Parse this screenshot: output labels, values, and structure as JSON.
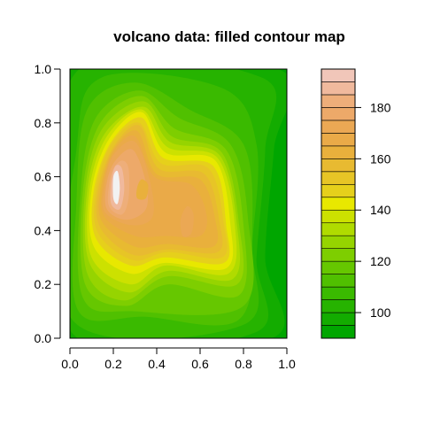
{
  "chart_data": {
    "type": "heatmap",
    "title": "volcano data: filled contour map",
    "xlabel": "",
    "ylabel": "",
    "xlim": [
      0,
      1
    ],
    "ylim": [
      0,
      1
    ],
    "x_ticks": [
      "0.0",
      "0.2",
      "0.4",
      "0.6",
      "0.8",
      "1.0"
    ],
    "y_ticks": [
      "0.0",
      "0.2",
      "0.4",
      "0.6",
      "0.8",
      "1.0"
    ],
    "levels": [
      90,
      95,
      100,
      105,
      110,
      115,
      120,
      125,
      130,
      135,
      140,
      145,
      150,
      155,
      160,
      165,
      170,
      175,
      180,
      185,
      190,
      195
    ],
    "level_colors": [
      "#00a600",
      "#13ac00",
      "#26b300",
      "#3aba00",
      "#50c000",
      "#66c700",
      "#7ece00",
      "#96d400",
      "#b0db00",
      "#cce100",
      "#e8e800",
      "#e6d01b",
      "#e7c526",
      "#e8ba31",
      "#e9b03c",
      "#eaaa48",
      "#eba854",
      "#eda969",
      "#eeae7a",
      "#f0b99d",
      "#f1c6b9",
      "#f2f2f2"
    ],
    "legend_ticks": [
      "100",
      "120",
      "140",
      "160",
      "180"
    ],
    "legend_placement": "right",
    "grid": false,
    "peaks": [
      {
        "x": 0.21,
        "y": 0.58,
        "value": 195
      },
      {
        "x": 0.33,
        "y": 0.56,
        "value": 165
      }
    ]
  }
}
